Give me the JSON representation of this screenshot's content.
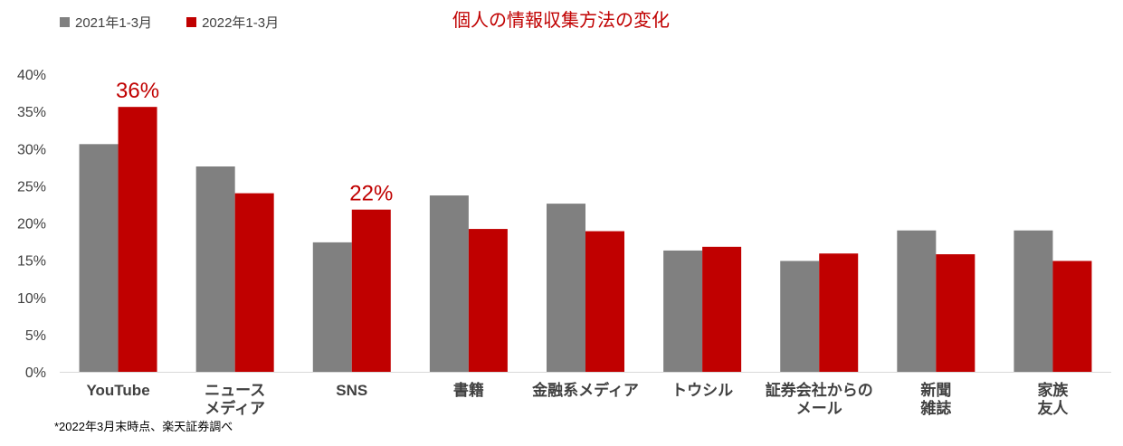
{
  "chart_data": {
    "type": "bar",
    "title": "個人の情報収集方法の変化",
    "categories": [
      [
        "YouTube"
      ],
      [
        "ニュース",
        "メディア"
      ],
      [
        "SNS"
      ],
      [
        "書籍"
      ],
      [
        "金融系メディア"
      ],
      [
        "トウシル"
      ],
      [
        "証券会社からの",
        "メール"
      ],
      [
        "新聞",
        "雑誌"
      ],
      [
        "家族",
        "友人"
      ]
    ],
    "series": [
      {
        "name": "2021年1-3月",
        "color": "#808080",
        "values": [
          30.6,
          27.6,
          17.4,
          23.7,
          22.6,
          16.3,
          14.9,
          19.0,
          19.0
        ]
      },
      {
        "name": "2022年1-3月",
        "color": "#c00000",
        "values": [
          35.6,
          24.0,
          21.8,
          19.2,
          18.9,
          16.8,
          15.9,
          15.8,
          14.9
        ]
      }
    ],
    "data_labels": [
      {
        "category_index": 0,
        "series_index": 1,
        "text": "36%"
      },
      {
        "category_index": 2,
        "series_index": 1,
        "text": "22%"
      }
    ],
    "yticks": [
      "0%",
      "5%",
      "10%",
      "15%",
      "20%",
      "25%",
      "30%",
      "35%",
      "40%"
    ],
    "ylim": [
      0,
      40
    ],
    "legend_position": "top-left",
    "grid": false
  },
  "footnote": "*2022年3月末時点、楽天証券調べ"
}
